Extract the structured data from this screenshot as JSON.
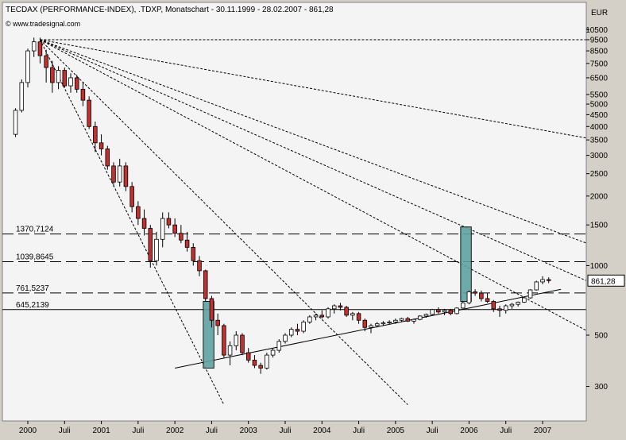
{
  "header": {
    "title": "TECDAX (PERFORMANCE-INDEX), .TDXP, Monatschart - 30.11.1999 - 28.02.2007 - 861,28",
    "source": "© www.tradesignal.com"
  },
  "colors": {
    "background": "#d4d0c8",
    "plot_background": "#f4f4f4",
    "up_candle": "#ffffff",
    "down_candle": "#c23030",
    "highlight_box": "#5fa3a3",
    "last_price_box": "#ffffff"
  },
  "chart_data": {
    "type": "candlestick",
    "title": "TECDAX (PERFORMANCE-INDEX), .TDXP, Monatschart - 30.11.1999 - 28.02.2007 - 861,28",
    "y_unit": "EUR",
    "y_scale": "log",
    "ylim": [
      300,
      11500
    ],
    "y_ticks": [
      "10500",
      "9500",
      "8500",
      "7500",
      "6500",
      "5500",
      "5000",
      "4500",
      "4000",
      "3500",
      "3000",
      "2500",
      "2000",
      "1500",
      "1000",
      "500",
      "300"
    ],
    "y_tick_values": [
      10500,
      9500,
      8500,
      7500,
      6500,
      5500,
      5000,
      4500,
      4000,
      3500,
      3000,
      2500,
      2000,
      1500,
      1000,
      500,
      300
    ],
    "x_ticks": [
      "2000",
      "Juli",
      "2001",
      "Juli",
      "2002",
      "Juli",
      "2003",
      "Juli",
      "2004",
      "Juli",
      "2005",
      "Juli",
      "2006",
      "Juli",
      "2007"
    ],
    "x_tick_dates": [
      "2000-01",
      "2000-07",
      "2001-01",
      "2001-07",
      "2002-01",
      "2002-07",
      "2003-01",
      "2003-07",
      "2004-01",
      "2004-07",
      "2005-01",
      "2005-07",
      "2006-01",
      "2006-07",
      "2007-01"
    ],
    "last_price_label": "861,28",
    "last_price": 861.28,
    "horizontal_levels": [
      {
        "label": "1370,7124",
        "value": 1370.7124,
        "style": "dashed"
      },
      {
        "label": "1039,8645",
        "value": 1039.8645,
        "style": "dashed"
      },
      {
        "label": "761,5237",
        "value": 761.5237,
        "style": "dashed"
      },
      {
        "label": "645,2139",
        "value": 645.2139,
        "style": "solid"
      }
    ],
    "highlight_boxes": [
      {
        "from": "2002-06",
        "to": "2002-07",
        "low": 360,
        "high": 700
      },
      {
        "from": "2005-12",
        "to": "2006-01",
        "low": 700,
        "high": 1470
      }
    ],
    "trendlines": [
      {
        "style": "solid",
        "from": [
          "2002-01",
          360
        ],
        "to": [
          "2007-04",
          790
        ]
      },
      {
        "style": "dotted",
        "from": [
          "2000-03",
          9500
        ],
        "to": [
          "2008-06",
          9500
        ]
      },
      {
        "style": "dotted",
        "from": [
          "2000-03",
          9500
        ],
        "to": [
          "2008-06",
          3200
        ]
      },
      {
        "style": "dotted",
        "from": [
          "2000-03",
          9500
        ],
        "to": [
          "2008-06",
          1000
        ]
      },
      {
        "style": "dotted",
        "from": [
          "2000-03",
          9500
        ],
        "to": [
          "2008-06",
          660
        ]
      },
      {
        "style": "dotted",
        "from": [
          "2000-03",
          9500
        ],
        "to": [
          "2008-06",
          380
        ]
      },
      {
        "style": "dotted",
        "from": [
          "2000-03",
          9500
        ],
        "to": [
          "2005-03",
          250
        ]
      },
      {
        "style": "dotted",
        "from": [
          "2000-03",
          9500
        ],
        "to": [
          "2002-09",
          250
        ]
      }
    ],
    "candles": [
      {
        "d": "1999-11",
        "o": 3700,
        "h": 4800,
        "l": 3600,
        "c": 4700
      },
      {
        "d": "1999-12",
        "o": 4700,
        "h": 6400,
        "l": 4600,
        "c": 6200
      },
      {
        "d": "2000-01",
        "o": 6200,
        "h": 8700,
        "l": 5900,
        "c": 8500
      },
      {
        "d": "2000-02",
        "o": 8500,
        "h": 9700,
        "l": 8000,
        "c": 9300
      },
      {
        "d": "2000-03",
        "o": 9300,
        "h": 9700,
        "l": 7500,
        "c": 8100
      },
      {
        "d": "2000-04",
        "o": 8100,
        "h": 8600,
        "l": 6200,
        "c": 7200
      },
      {
        "d": "2000-05",
        "o": 7200,
        "h": 7700,
        "l": 5600,
        "c": 6200
      },
      {
        "d": "2000-06",
        "o": 6200,
        "h": 7300,
        "l": 5800,
        "c": 7000
      },
      {
        "d": "2000-07",
        "o": 7000,
        "h": 7200,
        "l": 5900,
        "c": 6000
      },
      {
        "d": "2000-08",
        "o": 6000,
        "h": 6800,
        "l": 5600,
        "c": 6500
      },
      {
        "d": "2000-09",
        "o": 6500,
        "h": 6700,
        "l": 5600,
        "c": 5800
      },
      {
        "d": "2000-10",
        "o": 5800,
        "h": 6200,
        "l": 4900,
        "c": 5200
      },
      {
        "d": "2000-11",
        "o": 5200,
        "h": 5400,
        "l": 3900,
        "c": 4000
      },
      {
        "d": "2000-12",
        "o": 4000,
        "h": 4200,
        "l": 3100,
        "c": 3400
      },
      {
        "d": "2001-01",
        "o": 3400,
        "h": 3700,
        "l": 3000,
        "c": 3200
      },
      {
        "d": "2001-02",
        "o": 3200,
        "h": 3300,
        "l": 2600,
        "c": 2700
      },
      {
        "d": "2001-03",
        "o": 2700,
        "h": 2800,
        "l": 2200,
        "c": 2300
      },
      {
        "d": "2001-04",
        "o": 2300,
        "h": 2900,
        "l": 2200,
        "c": 2700
      },
      {
        "d": "2001-05",
        "o": 2700,
        "h": 2800,
        "l": 2100,
        "c": 2200
      },
      {
        "d": "2001-06",
        "o": 2200,
        "h": 2300,
        "l": 1700,
        "c": 1800
      },
      {
        "d": "2001-07",
        "o": 1800,
        "h": 1900,
        "l": 1500,
        "c": 1600
      },
      {
        "d": "2001-08",
        "o": 1600,
        "h": 1750,
        "l": 1350,
        "c": 1450
      },
      {
        "d": "2001-09",
        "o": 1450,
        "h": 1500,
        "l": 980,
        "c": 1050
      },
      {
        "d": "2001-10",
        "o": 1050,
        "h": 1400,
        "l": 1000,
        "c": 1300
      },
      {
        "d": "2001-11",
        "o": 1300,
        "h": 1700,
        "l": 1200,
        "c": 1600
      },
      {
        "d": "2001-12",
        "o": 1600,
        "h": 1700,
        "l": 1450,
        "c": 1500
      },
      {
        "d": "2002-01",
        "o": 1500,
        "h": 1600,
        "l": 1330,
        "c": 1380
      },
      {
        "d": "2002-02",
        "o": 1380,
        "h": 1500,
        "l": 1250,
        "c": 1290
      },
      {
        "d": "2002-03",
        "o": 1290,
        "h": 1400,
        "l": 1150,
        "c": 1200
      },
      {
        "d": "2002-04",
        "o": 1200,
        "h": 1250,
        "l": 1000,
        "c": 1050
      },
      {
        "d": "2002-05",
        "o": 1050,
        "h": 1100,
        "l": 900,
        "c": 950
      },
      {
        "d": "2002-06",
        "o": 950,
        "h": 960,
        "l": 700,
        "c": 720
      },
      {
        "d": "2002-07",
        "o": 720,
        "h": 740,
        "l": 540,
        "c": 580
      },
      {
        "d": "2002-08",
        "o": 580,
        "h": 620,
        "l": 500,
        "c": 550
      },
      {
        "d": "2002-09",
        "o": 550,
        "h": 560,
        "l": 400,
        "c": 410
      },
      {
        "d": "2002-10",
        "o": 410,
        "h": 470,
        "l": 370,
        "c": 450
      },
      {
        "d": "2002-11",
        "o": 450,
        "h": 520,
        "l": 430,
        "c": 500
      },
      {
        "d": "2002-12",
        "o": 500,
        "h": 510,
        "l": 410,
        "c": 420
      },
      {
        "d": "2003-01",
        "o": 420,
        "h": 440,
        "l": 380,
        "c": 390
      },
      {
        "d": "2003-02",
        "o": 390,
        "h": 410,
        "l": 360,
        "c": 370
      },
      {
        "d": "2003-03",
        "o": 370,
        "h": 380,
        "l": 340,
        "c": 360
      },
      {
        "d": "2003-04",
        "o": 360,
        "h": 420,
        "l": 355,
        "c": 410
      },
      {
        "d": "2003-05",
        "o": 410,
        "h": 440,
        "l": 400,
        "c": 430
      },
      {
        "d": "2003-06",
        "o": 430,
        "h": 480,
        "l": 420,
        "c": 470
      },
      {
        "d": "2003-07",
        "o": 470,
        "h": 510,
        "l": 460,
        "c": 500
      },
      {
        "d": "2003-08",
        "o": 500,
        "h": 540,
        "l": 490,
        "c": 530
      },
      {
        "d": "2003-09",
        "o": 530,
        "h": 560,
        "l": 500,
        "c": 520
      },
      {
        "d": "2003-10",
        "o": 520,
        "h": 580,
        "l": 510,
        "c": 570
      },
      {
        "d": "2003-11",
        "o": 570,
        "h": 610,
        "l": 560,
        "c": 600
      },
      {
        "d": "2003-12",
        "o": 600,
        "h": 620,
        "l": 580,
        "c": 610
      },
      {
        "d": "2004-01",
        "o": 610,
        "h": 640,
        "l": 590,
        "c": 600
      },
      {
        "d": "2004-02",
        "o": 600,
        "h": 660,
        "l": 590,
        "c": 650
      },
      {
        "d": "2004-03",
        "o": 650,
        "h": 680,
        "l": 620,
        "c": 670
      },
      {
        "d": "2004-04",
        "o": 670,
        "h": 690,
        "l": 640,
        "c": 660
      },
      {
        "d": "2004-05",
        "o": 660,
        "h": 670,
        "l": 600,
        "c": 610
      },
      {
        "d": "2004-06",
        "o": 610,
        "h": 630,
        "l": 580,
        "c": 620
      },
      {
        "d": "2004-07",
        "o": 620,
        "h": 630,
        "l": 560,
        "c": 580
      },
      {
        "d": "2004-08",
        "o": 580,
        "h": 590,
        "l": 520,
        "c": 540
      },
      {
        "d": "2004-09",
        "o": 540,
        "h": 560,
        "l": 510,
        "c": 550
      },
      {
        "d": "2004-10",
        "o": 550,
        "h": 570,
        "l": 540,
        "c": 560
      },
      {
        "d": "2004-11",
        "o": 560,
        "h": 575,
        "l": 550,
        "c": 565
      },
      {
        "d": "2004-12",
        "o": 565,
        "h": 580,
        "l": 555,
        "c": 570
      },
      {
        "d": "2005-01",
        "o": 570,
        "h": 590,
        "l": 560,
        "c": 580
      },
      {
        "d": "2005-02",
        "o": 580,
        "h": 595,
        "l": 570,
        "c": 590
      },
      {
        "d": "2005-03",
        "o": 590,
        "h": 600,
        "l": 570,
        "c": 575
      },
      {
        "d": "2005-04",
        "o": 575,
        "h": 590,
        "l": 560,
        "c": 585
      },
      {
        "d": "2005-05",
        "o": 585,
        "h": 610,
        "l": 580,
        "c": 605
      },
      {
        "d": "2005-06",
        "o": 605,
        "h": 620,
        "l": 595,
        "c": 615
      },
      {
        "d": "2005-07",
        "o": 615,
        "h": 650,
        "l": 610,
        "c": 645
      },
      {
        "d": "2005-08",
        "o": 645,
        "h": 660,
        "l": 620,
        "c": 630
      },
      {
        "d": "2005-09",
        "o": 630,
        "h": 650,
        "l": 610,
        "c": 640
      },
      {
        "d": "2005-10",
        "o": 640,
        "h": 650,
        "l": 610,
        "c": 620
      },
      {
        "d": "2005-11",
        "o": 620,
        "h": 660,
        "l": 615,
        "c": 655
      },
      {
        "d": "2005-12",
        "o": 655,
        "h": 700,
        "l": 650,
        "c": 690
      },
      {
        "d": "2006-01",
        "o": 690,
        "h": 780,
        "l": 680,
        "c": 770
      },
      {
        "d": "2006-02",
        "o": 770,
        "h": 790,
        "l": 740,
        "c": 760
      },
      {
        "d": "2006-03",
        "o": 760,
        "h": 780,
        "l": 700,
        "c": 720
      },
      {
        "d": "2006-04",
        "o": 720,
        "h": 760,
        "l": 690,
        "c": 700
      },
      {
        "d": "2006-05",
        "o": 700,
        "h": 710,
        "l": 630,
        "c": 650
      },
      {
        "d": "2006-06",
        "o": 650,
        "h": 670,
        "l": 600,
        "c": 640
      },
      {
        "d": "2006-07",
        "o": 640,
        "h": 680,
        "l": 620,
        "c": 670
      },
      {
        "d": "2006-08",
        "o": 670,
        "h": 690,
        "l": 650,
        "c": 680
      },
      {
        "d": "2006-09",
        "o": 680,
        "h": 700,
        "l": 665,
        "c": 695
      },
      {
        "d": "2006-10",
        "o": 695,
        "h": 730,
        "l": 690,
        "c": 725
      },
      {
        "d": "2006-11",
        "o": 725,
        "h": 790,
        "l": 720,
        "c": 785
      },
      {
        "d": "2006-12",
        "o": 785,
        "h": 860,
        "l": 780,
        "c": 850
      },
      {
        "d": "2007-01",
        "o": 850,
        "h": 900,
        "l": 830,
        "c": 870
      },
      {
        "d": "2007-02",
        "o": 870,
        "h": 890,
        "l": 840,
        "c": 861.28
      }
    ]
  }
}
